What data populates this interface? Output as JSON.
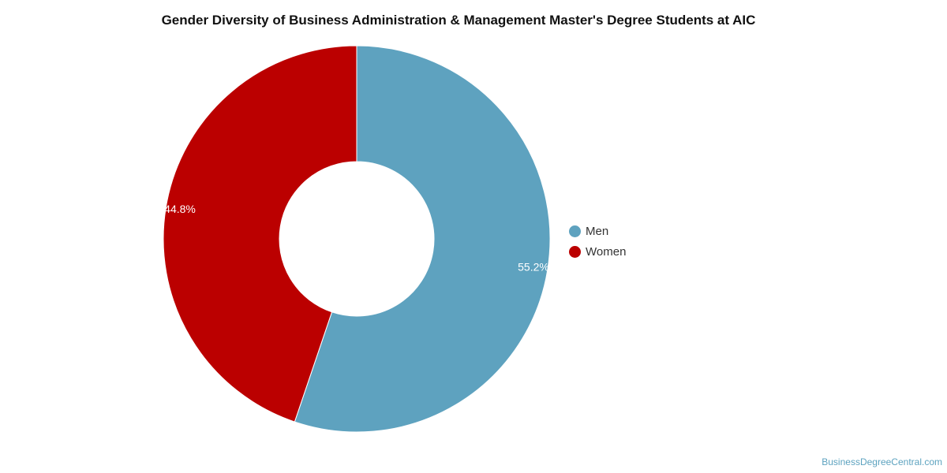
{
  "chart_data": {
    "type": "pie",
    "title": "Gender Diversity of Business Administration & Management Master's Degree Students at AIC",
    "categories": [
      "Men",
      "Women"
    ],
    "values": [
      55.2,
      44.8
    ],
    "labels": [
      "55.2%",
      "44.8%"
    ],
    "colors": [
      "#5ea2bf",
      "#bb0000"
    ],
    "donut": true,
    "legend_position": "right"
  },
  "legend": {
    "items": [
      {
        "label": "Men",
        "color": "#5ea2bf"
      },
      {
        "label": "Women",
        "color": "#bb0000"
      }
    ]
  },
  "watermark": "BusinessDegreeCentral.com"
}
